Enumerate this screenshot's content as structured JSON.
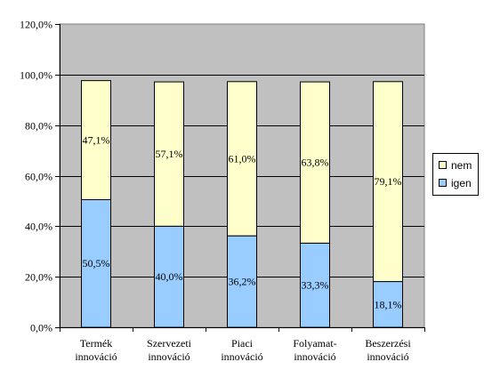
{
  "chart_data": {
    "type": "bar",
    "stacked": true,
    "categories": [
      [
        "Termék",
        "innováció"
      ],
      [
        "Szervezeti",
        "innováció"
      ],
      [
        "Piaci",
        "innováció"
      ],
      [
        "Folyamat-",
        "innováció"
      ],
      [
        "Beszerzési",
        "innováció"
      ]
    ],
    "series": [
      {
        "name": "igen",
        "values": [
          50.5,
          40.0,
          36.2,
          33.3,
          18.1
        ],
        "labels": [
          "50,5%",
          "40,0%",
          "36,2%",
          "33,3%",
          "18,1%"
        ],
        "color": "#99ccff"
      },
      {
        "name": "nem",
        "values": [
          47.1,
          57.1,
          61.0,
          63.8,
          79.1
        ],
        "labels": [
          "47,1%",
          "57,1%",
          "61,0%",
          "63,8%",
          "79,1%"
        ],
        "color": "#ffffcc"
      }
    ],
    "ylim": [
      0,
      120
    ],
    "yticks": [
      "0,0%",
      "20,0%",
      "40,0%",
      "60,0%",
      "80,0%",
      "100,0%",
      "120,0%"
    ],
    "plot_background": "#c0c0c0",
    "grid": true,
    "legend": {
      "position": "right",
      "entries": [
        "nem",
        "igen"
      ]
    }
  }
}
